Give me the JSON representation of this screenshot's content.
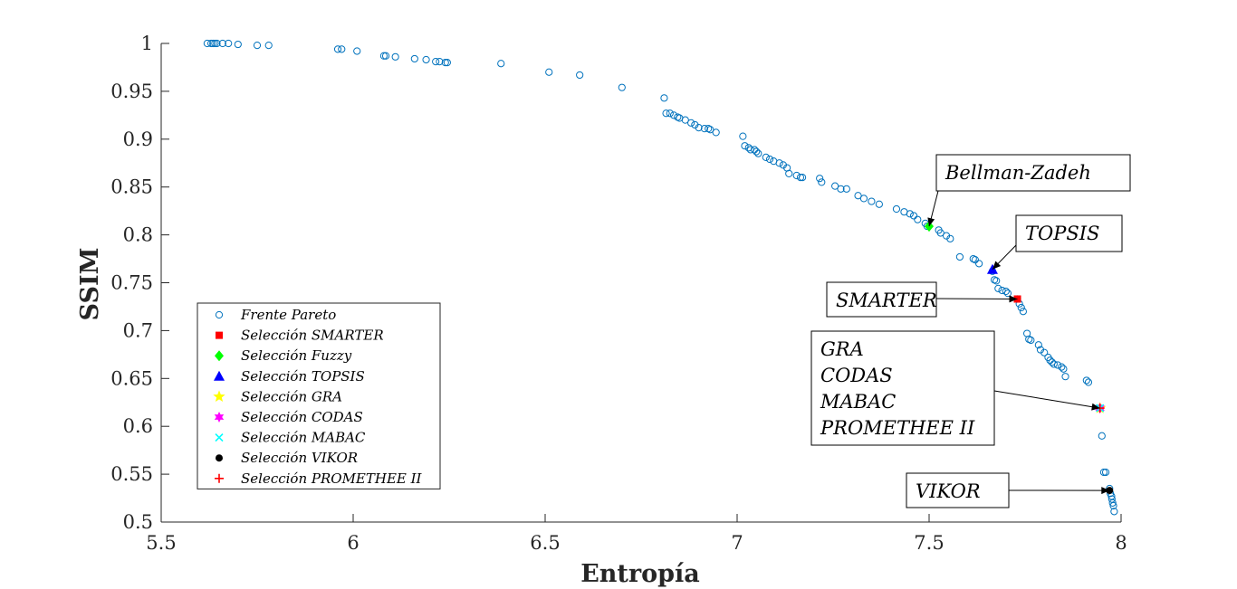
{
  "chart_data": {
    "type": "scatter",
    "xlabel": "Entropía",
    "ylabel": "SSIM",
    "xlim": [
      5.5,
      8
    ],
    "ylim": [
      0.5,
      1
    ],
    "xticks": [
      "5.5",
      "6",
      "6.5",
      "7",
      "7.5",
      "8"
    ],
    "yticks": [
      "0.5",
      "0.55",
      "0.6",
      "0.65",
      "0.7",
      "0.75",
      "0.8",
      "0.85",
      "0.9",
      "0.95",
      "1"
    ],
    "grid": false,
    "legend_position": "bottom-left",
    "pareto": {
      "name": "Frente Pareto",
      "color": "#0072BD",
      "points": [
        [
          5.62,
          1.0
        ],
        [
          5.63,
          1.0
        ],
        [
          5.635,
          1.0
        ],
        [
          5.64,
          1.0
        ],
        [
          5.645,
          1.0
        ],
        [
          5.66,
          1.0
        ],
        [
          5.675,
          1.0
        ],
        [
          5.7,
          0.999
        ],
        [
          5.75,
          0.998
        ],
        [
          5.78,
          0.998
        ],
        [
          5.96,
          0.994
        ],
        [
          5.97,
          0.994
        ],
        [
          6.01,
          0.992
        ],
        [
          6.08,
          0.987
        ],
        [
          6.085,
          0.987
        ],
        [
          6.11,
          0.986
        ],
        [
          6.16,
          0.984
        ],
        [
          6.19,
          0.983
        ],
        [
          6.215,
          0.981
        ],
        [
          6.225,
          0.981
        ],
        [
          6.24,
          0.98
        ],
        [
          6.245,
          0.98
        ],
        [
          6.385,
          0.979
        ],
        [
          6.51,
          0.97
        ],
        [
          6.59,
          0.967
        ],
        [
          6.7,
          0.954
        ],
        [
          6.81,
          0.943
        ],
        [
          6.815,
          0.927
        ],
        [
          6.825,
          0.927
        ],
        [
          6.835,
          0.925
        ],
        [
          6.845,
          0.923
        ],
        [
          6.85,
          0.922
        ],
        [
          6.865,
          0.92
        ],
        [
          6.88,
          0.917
        ],
        [
          6.89,
          0.915
        ],
        [
          6.9,
          0.912
        ],
        [
          6.915,
          0.911
        ],
        [
          6.925,
          0.911
        ],
        [
          6.93,
          0.91
        ],
        [
          6.945,
          0.907
        ],
        [
          7.015,
          0.903
        ],
        [
          7.02,
          0.893
        ],
        [
          7.03,
          0.891
        ],
        [
          7.035,
          0.889
        ],
        [
          7.045,
          0.889
        ],
        [
          7.05,
          0.887
        ],
        [
          7.055,
          0.885
        ],
        [
          7.075,
          0.881
        ],
        [
          7.085,
          0.879
        ],
        [
          7.095,
          0.877
        ],
        [
          7.11,
          0.875
        ],
        [
          7.12,
          0.873
        ],
        [
          7.13,
          0.87
        ],
        [
          7.135,
          0.864
        ],
        [
          7.155,
          0.862
        ],
        [
          7.165,
          0.86
        ],
        [
          7.17,
          0.86
        ],
        [
          7.215,
          0.859
        ],
        [
          7.22,
          0.855
        ],
        [
          7.255,
          0.851
        ],
        [
          7.27,
          0.848
        ],
        [
          7.285,
          0.848
        ],
        [
          7.315,
          0.841
        ],
        [
          7.33,
          0.838
        ],
        [
          7.35,
          0.835
        ],
        [
          7.37,
          0.832
        ],
        [
          7.415,
          0.827
        ],
        [
          7.435,
          0.824
        ],
        [
          7.45,
          0.822
        ],
        [
          7.46,
          0.82
        ],
        [
          7.47,
          0.816
        ],
        [
          7.49,
          0.812
        ],
        [
          7.495,
          0.809
        ],
        [
          7.525,
          0.805
        ],
        [
          7.53,
          0.802
        ],
        [
          7.545,
          0.799
        ],
        [
          7.555,
          0.796
        ],
        [
          7.58,
          0.777
        ],
        [
          7.615,
          0.775
        ],
        [
          7.62,
          0.774
        ],
        [
          7.63,
          0.77
        ],
        [
          7.665,
          0.762
        ],
        [
          7.67,
          0.753
        ],
        [
          7.675,
          0.752
        ],
        [
          7.68,
          0.744
        ],
        [
          7.69,
          0.742
        ],
        [
          7.7,
          0.741
        ],
        [
          7.705,
          0.739
        ],
        [
          7.73,
          0.733
        ],
        [
          7.735,
          0.728
        ],
        [
          7.74,
          0.724
        ],
        [
          7.745,
          0.72
        ],
        [
          7.755,
          0.697
        ],
        [
          7.76,
          0.691
        ],
        [
          7.765,
          0.69
        ],
        [
          7.785,
          0.685
        ],
        [
          7.79,
          0.68
        ],
        [
          7.8,
          0.677
        ],
        [
          7.81,
          0.672
        ],
        [
          7.815,
          0.669
        ],
        [
          7.82,
          0.667
        ],
        [
          7.825,
          0.665
        ],
        [
          7.835,
          0.664
        ],
        [
          7.845,
          0.662
        ],
        [
          7.85,
          0.66
        ],
        [
          7.855,
          0.652
        ],
        [
          7.91,
          0.648
        ],
        [
          7.915,
          0.646
        ],
        [
          7.945,
          0.619
        ],
        [
          7.95,
          0.59
        ],
        [
          7.955,
          0.552
        ],
        [
          7.96,
          0.552
        ],
        [
          7.97,
          0.535
        ],
        [
          7.972,
          0.53
        ],
        [
          7.975,
          0.527
        ],
        [
          7.976,
          0.524
        ],
        [
          7.978,
          0.52
        ],
        [
          7.98,
          0.517
        ],
        [
          7.982,
          0.511
        ]
      ]
    },
    "selections": [
      {
        "name": "Selección SMARTER",
        "marker": "square",
        "color": "#FF0000",
        "x": 7.73,
        "y": 0.733
      },
      {
        "name": "Selección Fuzzy",
        "marker": "diamond",
        "color": "#00FF00",
        "x": 7.5,
        "y": 0.809
      },
      {
        "name": "Selección TOPSIS",
        "marker": "triangle",
        "color": "#0000FF",
        "x": 7.665,
        "y": 0.764
      },
      {
        "name": "Selección GRA",
        "marker": "pentagram",
        "color": "#FFFF00",
        "x": 7.945,
        "y": 0.619
      },
      {
        "name": "Selección CODAS",
        "marker": "hexagram",
        "color": "#FF00FF",
        "x": 7.945,
        "y": 0.619
      },
      {
        "name": "Selección MABAC",
        "marker": "x",
        "color": "#00FFFF",
        "x": 7.945,
        "y": 0.619
      },
      {
        "name": "Selección VIKOR",
        "marker": "filled-circle",
        "color": "#000000",
        "x": 7.97,
        "y": 0.533
      },
      {
        "name": "Selección PROMETHEE II",
        "marker": "plus",
        "color": "#FF0000",
        "x": 7.945,
        "y": 0.619
      }
    ],
    "annotations": [
      {
        "id": "bellman",
        "lines": [
          "Bellman-Zadeh"
        ],
        "target": [
          7.5,
          0.809
        ]
      },
      {
        "id": "topsis",
        "lines": [
          "TOPSIS"
        ],
        "target": [
          7.665,
          0.764
        ]
      },
      {
        "id": "smarter",
        "lines": [
          "SMARTER"
        ],
        "target": [
          7.73,
          0.733
        ]
      },
      {
        "id": "gra-group",
        "lines": [
          "GRA",
          "CODAS",
          "MABAC",
          "PROMETHEE II"
        ],
        "target": [
          7.945,
          0.619
        ]
      },
      {
        "id": "vikor",
        "lines": [
          "VIKOR"
        ],
        "target": [
          7.97,
          0.533
        ]
      }
    ]
  }
}
